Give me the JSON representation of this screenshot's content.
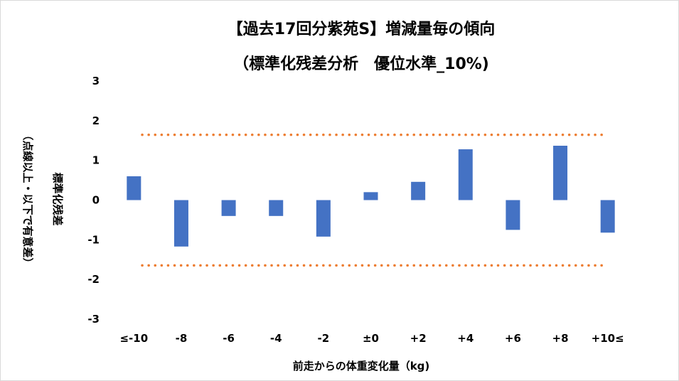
{
  "chart_data": {
    "type": "bar",
    "title": "【過去17回分紫苑S】増減量毎の傾向",
    "subtitle": "（標準化残差分析　優位水準_10%)",
    "xlabel": "前走からの体重変化量（kg)",
    "ylabel": "標準化残差",
    "ylabel_note": "（点線以上・以下で有意差）",
    "categories": [
      "≤-10",
      "-8",
      "-6",
      "-4",
      "-2",
      "±0",
      "+2",
      "+4",
      "+6",
      "+8",
      "+10≤"
    ],
    "values": [
      0.6,
      -1.17,
      -0.4,
      -0.4,
      -0.92,
      0.2,
      0.46,
      1.28,
      -0.75,
      1.37,
      -0.82
    ],
    "ylim": [
      -3,
      3
    ],
    "yticks": [
      -3,
      -2,
      -1,
      0,
      1,
      2,
      3
    ],
    "thresholds": [
      1.645,
      -1.645
    ],
    "bar_color": "#4472C4",
    "threshold_color": "#ED7D31",
    "grid": false,
    "legend": "none"
  }
}
